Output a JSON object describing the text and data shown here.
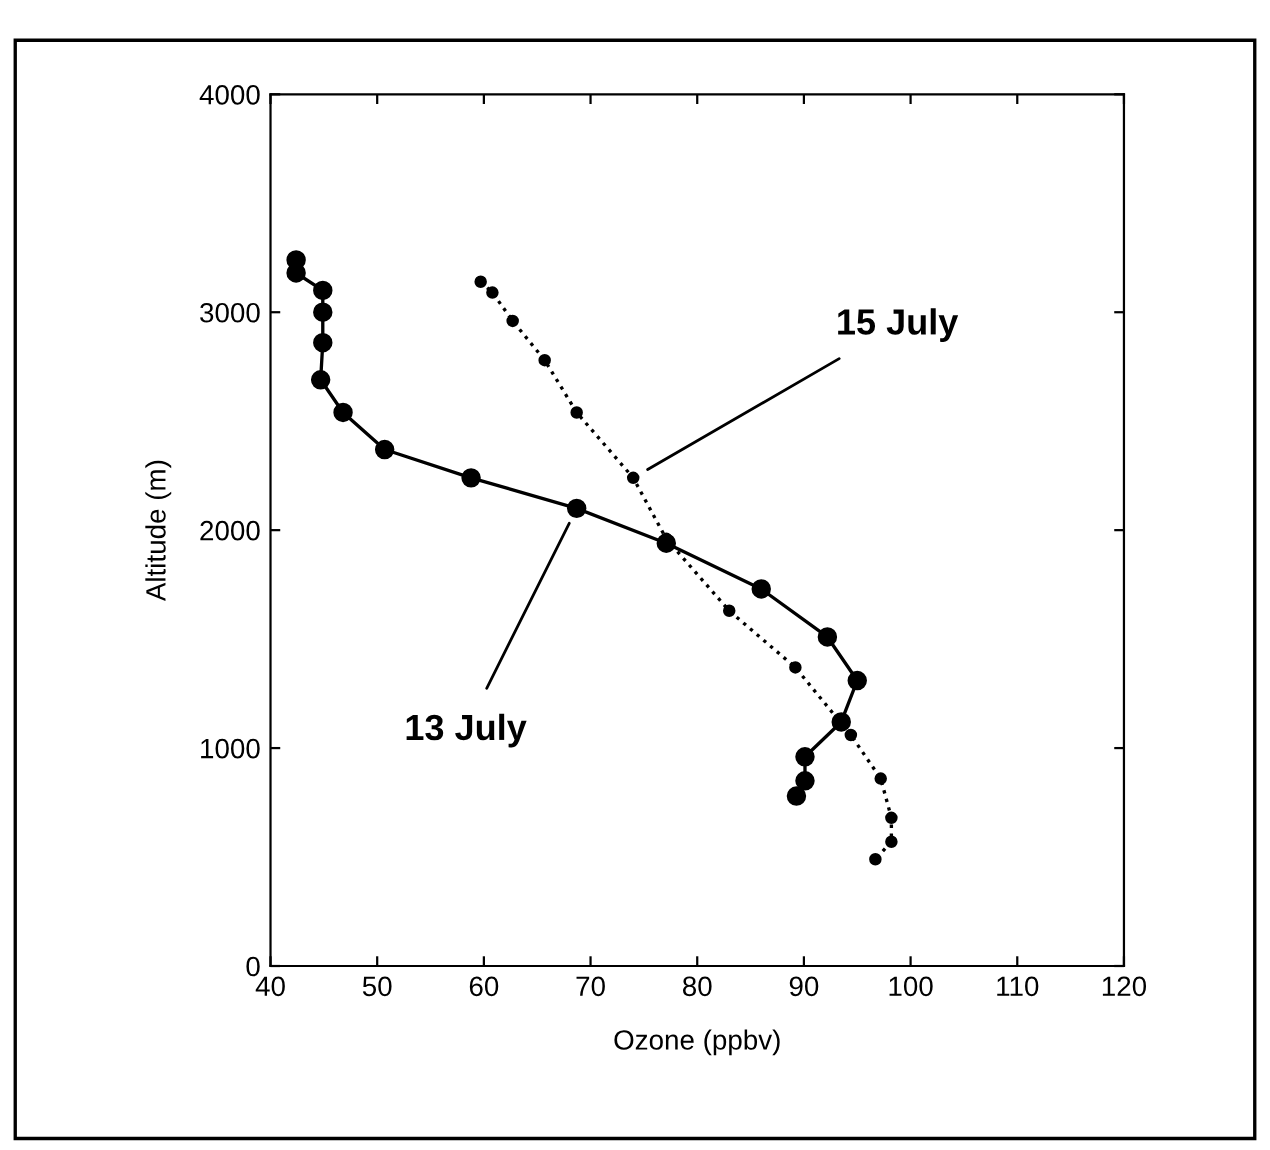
{
  "chart_data": {
    "type": "line",
    "xlabel": "Ozone (ppbv)",
    "ylabel": "Altitude (m)",
    "xlim": [
      40,
      120
    ],
    "xticks": [
      40,
      50,
      60,
      70,
      80,
      90,
      100,
      110,
      120
    ],
    "ylim": [
      0,
      4000
    ],
    "yticks": [
      0,
      1000,
      2000,
      3000,
      4000
    ],
    "grid": false,
    "legend": false,
    "marker": "circle",
    "series": [
      {
        "name": "13 July",
        "color": "#000000",
        "line_style": "solid",
        "x": [
          42.4,
          42.4,
          44.9,
          44.9,
          44.9,
          44.7,
          46.8,
          50.7,
          58.8,
          68.7,
          77.1,
          86.0,
          92.2,
          95.0,
          93.5,
          90.1,
          90.1,
          89.3
        ],
        "values": [
          3240,
          3180,
          3100,
          3000,
          2860,
          2690,
          2540,
          2370,
          2240,
          2100,
          1940,
          1730,
          1510,
          1310,
          1120,
          960,
          850,
          780
        ]
      },
      {
        "name": "15 July",
        "color": "#000000",
        "line_style": "dotted",
        "x": [
          59.7,
          60.8,
          62.7,
          65.7,
          68.7,
          74.0,
          77.1,
          83.0,
          89.2,
          94.4,
          97.2,
          98.2,
          98.2,
          96.7
        ],
        "values": [
          3140,
          3090,
          2960,
          2780,
          2540,
          2240,
          1960,
          1630,
          1370,
          1060,
          860,
          680,
          570,
          490
        ]
      }
    ]
  }
}
